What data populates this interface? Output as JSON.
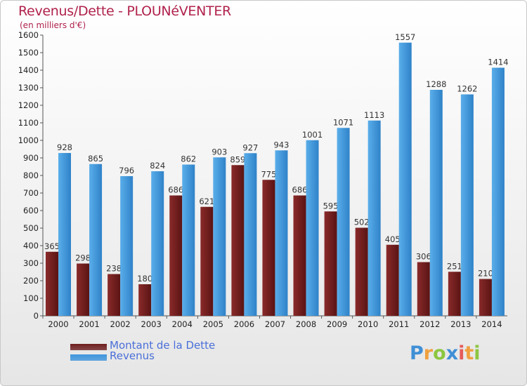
{
  "title": "Revenus/Dette - PLOUNéVENTER",
  "subtitle": "(en milliers d'€)",
  "logo_letters": [
    {
      "char": "P",
      "color": "#3f8fd6"
    },
    {
      "char": "r",
      "color": "#f0a040"
    },
    {
      "char": "o",
      "color": "#8cc63f"
    },
    {
      "char": "x",
      "color": "#3f8fd6"
    },
    {
      "char": "i",
      "color": "#e65a5a"
    },
    {
      "char": "t",
      "color": "#f0a040"
    },
    {
      "char": "i",
      "color": "#8cc63f"
    }
  ],
  "legend": [
    {
      "label": "Montant de la Dette",
      "color": "#6e1f1f"
    },
    {
      "label": "Revenus",
      "color": "#3f95dc"
    }
  ],
  "chart_data": {
    "type": "bar",
    "categories": [
      "2000",
      "2001",
      "2002",
      "2003",
      "2004",
      "2005",
      "2006",
      "2007",
      "2008",
      "2009",
      "2010",
      "2011",
      "2012",
      "2013",
      "2014"
    ],
    "series": [
      {
        "name": "Montant de la Dette",
        "color": "#6e1f1f",
        "values": [
          365,
          298,
          238,
          180,
          686,
          621,
          859,
          775,
          686,
          595,
          502,
          405,
          306,
          251,
          210
        ]
      },
      {
        "name": "Revenus",
        "color": "#3f95dc",
        "values": [
          928,
          865,
          796,
          824,
          862,
          903,
          927,
          943,
          1001,
          1071,
          1113,
          1557,
          1288,
          1262,
          1414
        ]
      }
    ],
    "ylim": [
      0,
      1600
    ],
    "yticks": [
      0,
      100,
      200,
      300,
      400,
      500,
      600,
      700,
      800,
      900,
      1000,
      1100,
      1200,
      1300,
      1400,
      1500,
      1600
    ],
    "grid": false
  }
}
